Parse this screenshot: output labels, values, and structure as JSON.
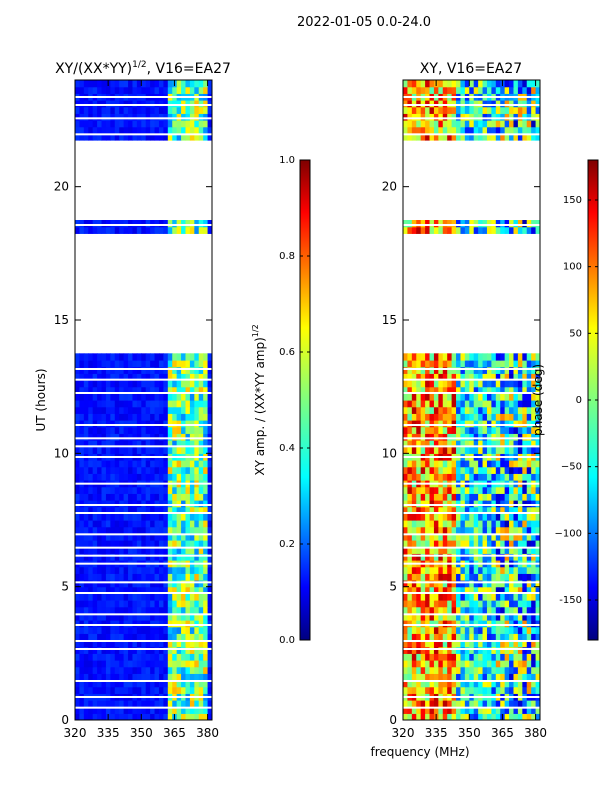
{
  "figure": {
    "suptitle": "2022-01-05 0.0-24.0",
    "xlabel": "frequency (MHz)"
  },
  "chart_data": [
    {
      "type": "heatmap",
      "title": "XY/(XX*YY)",
      "title_suffix": ", V16=EA27",
      "title_sup": "1/2",
      "xlabel": "",
      "ylabel": "UT (hours)",
      "xlim": [
        320,
        382
      ],
      "ylim": [
        0,
        24
      ],
      "xticks": [
        320,
        335,
        350,
        365,
        380
      ],
      "yticks": [
        0,
        5,
        10,
        15,
        20
      ],
      "data_gaps_hours": [
        [
          13.8,
          18.3
        ],
        [
          18.7,
          21.8
        ]
      ],
      "colorbar": {
        "label": "XY amp. / (XX*YY amp)",
        "label_sup": "1/2",
        "range": [
          0.0,
          1.0
        ],
        "ticks": [
          "0.0",
          "0.2",
          "0.4",
          "0.6",
          "0.8",
          "1.0"
        ],
        "colormap": "jet"
      }
    },
    {
      "type": "heatmap",
      "title": "XY, V16=EA27",
      "xlabel": "",
      "ylabel": "",
      "xlim": [
        320,
        382
      ],
      "ylim": [
        0,
        24
      ],
      "xticks": [
        320,
        335,
        350,
        365,
        380
      ],
      "yticks": [
        0,
        5,
        10,
        15,
        20
      ],
      "data_gaps_hours": [
        [
          13.8,
          18.3
        ],
        [
          18.7,
          21.8
        ]
      ],
      "colorbar": {
        "label": "phase (deg)",
        "range": [
          -180,
          180
        ],
        "ticks": [
          "-150",
          "−100",
          "−50",
          "0",
          "50",
          "100",
          "150"
        ],
        "colormap": "jet"
      }
    }
  ]
}
